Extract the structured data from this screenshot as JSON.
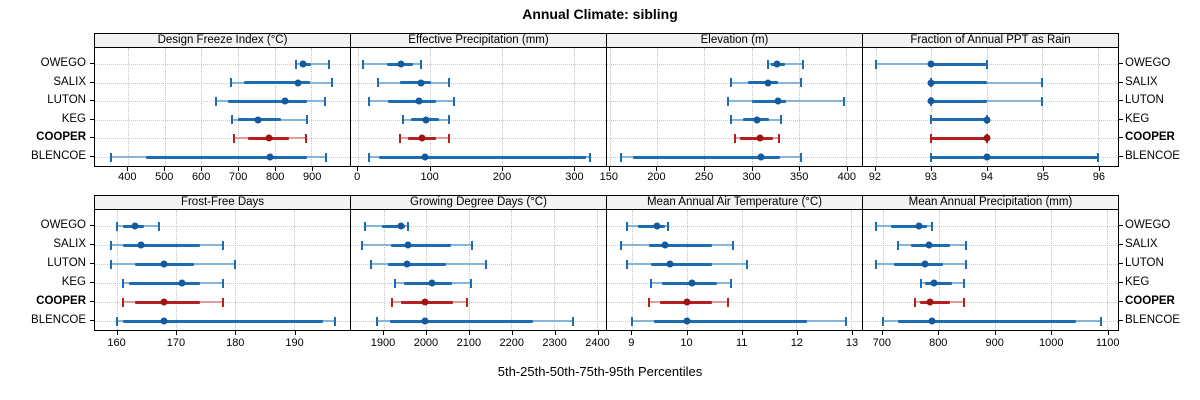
{
  "title": "Annual Climate: sibling",
  "xlabel": "5th-25th-50th-75th-95th Percentiles",
  "stations": [
    "OWEGO",
    "SALIX",
    "LUTON",
    "KEG",
    "COOPER",
    "BLENCOE"
  ],
  "highlighted_station": "COOPER",
  "colors": {
    "series_blue": "#1b6cb0",
    "series_blue_light": "#85b5da",
    "series_blue_dot": "#14599c",
    "highlight_red": "#b4201f",
    "highlight_red_light": "#e09f9f",
    "highlight_red_dot": "#9c1414",
    "panel_header_bg": "#f2f2f2",
    "panel_border": "#000000",
    "grid": "#c8c8c8"
  },
  "chart_data": [
    {
      "type": "scatter",
      "subtype": "dot-with-percentile-whiskers",
      "title": "Design Freeze Index (°C)",
      "percentiles": [
        5,
        25,
        50,
        75,
        95
      ],
      "xlim": [
        310,
        1005
      ],
      "xticks": [
        400,
        500,
        600,
        700,
        800,
        900
      ],
      "series": {
        "OWEGO": [
          858,
          868,
          878,
          900,
          948
        ],
        "SALIX": [
          680,
          715,
          863,
          895,
          955
        ],
        "LUTON": [
          640,
          672,
          828,
          888,
          938
        ],
        "KEG": [
          683,
          700,
          753,
          817,
          888
        ],
        "COOPER": [
          690,
          727,
          783,
          840,
          885
        ],
        "BLENCOE": [
          354,
          450,
          786,
          888,
          940
        ]
      }
    },
    {
      "type": "scatter",
      "subtype": "dot-with-percentile-whiskers",
      "title": "Effective Precipitation (mm)",
      "percentiles": [
        5,
        25,
        50,
        75,
        95
      ],
      "xlim": [
        -10,
        345
      ],
      "xticks": [
        0,
        100,
        200,
        300
      ],
      "series": {
        "OWEGO": [
          7,
          40,
          60,
          76,
          87
        ],
        "SALIX": [
          27,
          58,
          87,
          102,
          127
        ],
        "LUTON": [
          15,
          41,
          84,
          109,
          133
        ],
        "KEG": [
          62,
          74,
          95,
          112,
          127
        ],
        "COOPER": [
          58,
          69,
          89,
          108,
          126
        ],
        "BLENCOE": [
          15,
          29,
          93,
          317,
          323
        ]
      }
    },
    {
      "type": "scatter",
      "subtype": "dot-with-percentile-whiskers",
      "title": "Elevation (m)",
      "percentiles": [
        5,
        25,
        50,
        75,
        95
      ],
      "xlim": [
        147,
        417
      ],
      "xticks": [
        150,
        200,
        250,
        300,
        350,
        400
      ],
      "series": {
        "OWEGO": [
          317,
          321,
          327,
          336,
          355
        ],
        "SALIX": [
          278,
          296,
          317,
          328,
          352
        ],
        "LUTON": [
          275,
          300,
          328,
          337,
          398
        ],
        "KEG": [
          278,
          291,
          306,
          318,
          331
        ],
        "COOPER": [
          282,
          288,
          309,
          323,
          329
        ],
        "BLENCOE": [
          162,
          175,
          310,
          330,
          352
        ]
      }
    },
    {
      "type": "scatter",
      "subtype": "dot-with-percentile-whiskers",
      "title": "Fraction of Annual PPT as Rain",
      "percentiles": [
        5,
        25,
        50,
        75,
        95
      ],
      "xlim": [
        91.77,
        96.36
      ],
      "xticks": [
        92,
        93,
        94,
        95,
        96
      ],
      "series": {
        "OWEGO": [
          92,
          93,
          93,
          94,
          94
        ],
        "SALIX": [
          93,
          93,
          93,
          94,
          95
        ],
        "LUTON": [
          93,
          93,
          93,
          94,
          95
        ],
        "KEG": [
          93,
          93,
          94,
          94,
          94
        ],
        "COOPER": [
          93,
          93,
          94,
          94,
          94
        ],
        "BLENCOE": [
          93,
          93,
          94,
          96,
          96
        ]
      }
    },
    {
      "type": "scatter",
      "subtype": "dot-with-percentile-whiskers",
      "title": "Frost-Free Days",
      "percentiles": [
        5,
        25,
        50,
        75,
        95
      ],
      "xlim": [
        156.2,
        199.5
      ],
      "xticks": [
        160,
        170,
        180,
        190
      ],
      "series": {
        "OWEGO": [
          160,
          161,
          163,
          164.5,
          167
        ],
        "SALIX": [
          159,
          161,
          164,
          174,
          178
        ],
        "LUTON": [
          159,
          163,
          168,
          173,
          180
        ],
        "KEG": [
          161,
          162,
          171,
          174,
          178
        ],
        "COOPER": [
          161,
          163,
          168,
          174,
          178
        ],
        "BLENCOE": [
          160,
          161,
          168,
          195,
          197
        ]
      }
    },
    {
      "type": "scatter",
      "subtype": "dot-with-percentile-whiskers",
      "title": "Growing Degree Days (°C)",
      "percentiles": [
        5,
        25,
        50,
        75,
        95
      ],
      "xlim": [
        1823,
        2422
      ],
      "xticks": [
        1900,
        2000,
        2100,
        2200,
        2300,
        2400
      ],
      "series": {
        "OWEGO": [
          1855,
          1895,
          1940,
          1950,
          1957
        ],
        "SALIX": [
          1850,
          1918,
          1958,
          2057,
          2107
        ],
        "LUTON": [
          1869,
          1911,
          1955,
          2046,
          2140
        ],
        "KEG": [
          1927,
          1947,
          2013,
          2060,
          2105
        ],
        "COOPER": [
          1920,
          1940,
          1997,
          2063,
          2095
        ],
        "BLENCOE": [
          1885,
          1915,
          1998,
          2250,
          2345
        ]
      }
    },
    {
      "type": "scatter",
      "subtype": "dot-with-percentile-whiskers",
      "title": "Mean Annual Air Temperature (°C)",
      "percentiles": [
        5,
        25,
        50,
        75,
        95
      ],
      "xlim": [
        8.54,
        13.2
      ],
      "xticks": [
        9,
        10,
        11,
        12,
        13
      ],
      "series": {
        "OWEGO": [
          8.9,
          9.1,
          9.45,
          9.6,
          9.65
        ],
        "SALIX": [
          8.8,
          9.3,
          9.6,
          10.45,
          10.85
        ],
        "LUTON": [
          8.9,
          9.35,
          9.7,
          10.45,
          11.1
        ],
        "KEG": [
          9.35,
          9.55,
          10.1,
          10.55,
          10.8
        ],
        "COOPER": [
          9.3,
          9.5,
          10.0,
          10.45,
          10.75
        ],
        "BLENCOE": [
          9.0,
          9.4,
          10.0,
          12.2,
          12.9
        ]
      }
    },
    {
      "type": "scatter",
      "subtype": "dot-with-percentile-whiskers",
      "title": "Mean Annual Precipitation (mm)",
      "percentiles": [
        5,
        25,
        50,
        75,
        95
      ],
      "xlim": [
        665,
        1120
      ],
      "xticks": [
        700,
        800,
        900,
        1000,
        1100
      ],
      "series": {
        "OWEGO": [
          688,
          715,
          765,
          780,
          788
        ],
        "SALIX": [
          727,
          750,
          783,
          820,
          848
        ],
        "LUTON": [
          688,
          720,
          776,
          808,
          848
        ],
        "KEG": [
          768,
          776,
          792,
          823,
          846
        ],
        "COOPER": [
          757,
          767,
          785,
          821,
          845
        ],
        "BLENCOE": [
          700,
          728,
          788,
          1045,
          1090
        ]
      }
    }
  ]
}
